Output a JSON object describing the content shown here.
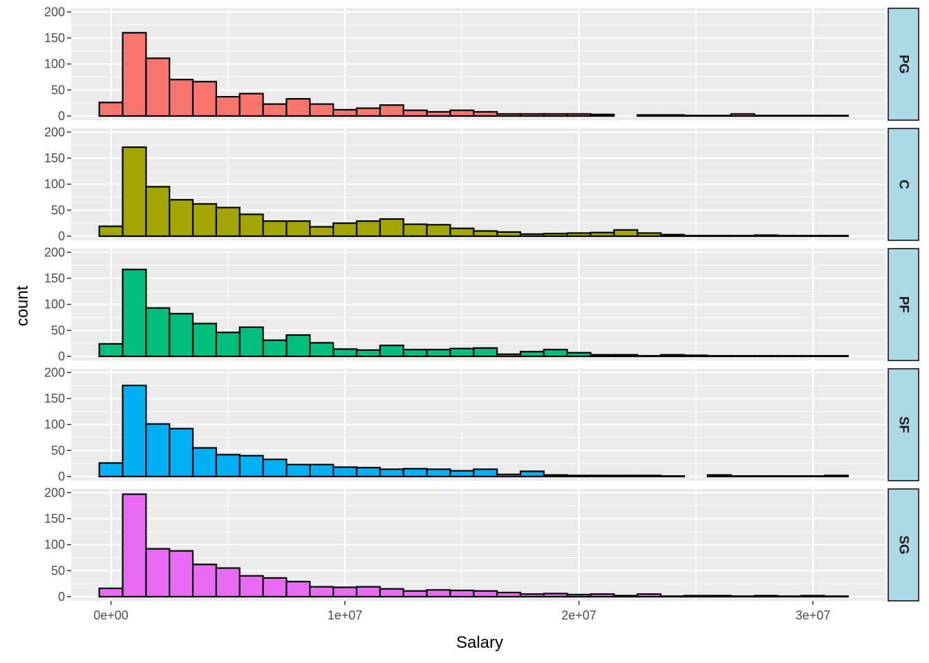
{
  "chart_data": {
    "type": "bar",
    "subtype": "faceted-histogram",
    "xlabel": "Salary",
    "ylabel": "count",
    "x_ticks": [
      {
        "value": 0,
        "label": "0e+00"
      },
      {
        "value": 10000000,
        "label": "1e+07"
      },
      {
        "value": 20000000,
        "label": "2e+07"
      },
      {
        "value": 30000000,
        "label": "3e+07"
      }
    ],
    "y_ticks": [
      {
        "value": 0,
        "label": "0"
      },
      {
        "value": 50,
        "label": "50"
      },
      {
        "value": 100,
        "label": "100"
      },
      {
        "value": 150,
        "label": "150"
      },
      {
        "value": 200,
        "label": "200"
      }
    ],
    "xlim": [
      -1700000,
      33100000
    ],
    "ylim": [
      -8,
      207
    ],
    "bin_width": 1000000,
    "bin_start": -500000,
    "bins": 32,
    "grid": true,
    "facets": [
      {
        "label": "PG",
        "color": "#F8766D",
        "values": [
          26,
          160,
          111,
          70,
          66,
          37,
          43,
          23,
          33,
          23,
          12,
          15,
          21,
          11,
          8,
          11,
          8,
          4,
          4,
          4,
          4,
          3,
          0,
          2,
          2,
          1,
          1,
          4,
          1,
          1,
          1,
          1
        ]
      },
      {
        "label": "C",
        "color": "#A3A500",
        "values": [
          19,
          171,
          95,
          70,
          62,
          55,
          42,
          29,
          29,
          18,
          25,
          29,
          33,
          23,
          22,
          15,
          10,
          8,
          4,
          5,
          6,
          7,
          12,
          6,
          3,
          1,
          1,
          1,
          2,
          1,
          1,
          1
        ]
      },
      {
        "label": "PF",
        "color": "#00BF7D",
        "values": [
          24,
          167,
          93,
          82,
          63,
          46,
          56,
          31,
          41,
          26,
          14,
          12,
          21,
          13,
          13,
          15,
          16,
          4,
          9,
          13,
          7,
          3,
          3,
          1,
          3,
          2,
          1,
          1,
          1,
          1,
          1,
          1
        ]
      },
      {
        "label": "SF",
        "color": "#00B0F6",
        "values": [
          26,
          175,
          101,
          92,
          55,
          42,
          40,
          33,
          23,
          23,
          18,
          17,
          14,
          15,
          14,
          11,
          14,
          4,
          10,
          3,
          2,
          2,
          2,
          2,
          1,
          0,
          3,
          1,
          1,
          1,
          1,
          2
        ]
      },
      {
        "label": "SG",
        "color": "#E76BF3",
        "values": [
          16,
          197,
          92,
          88,
          62,
          55,
          40,
          36,
          29,
          19,
          18,
          19,
          15,
          11,
          13,
          12,
          11,
          8,
          5,
          6,
          4,
          5,
          2,
          5,
          1,
          2,
          2,
          1,
          2,
          1,
          2,
          1
        ]
      }
    ]
  }
}
